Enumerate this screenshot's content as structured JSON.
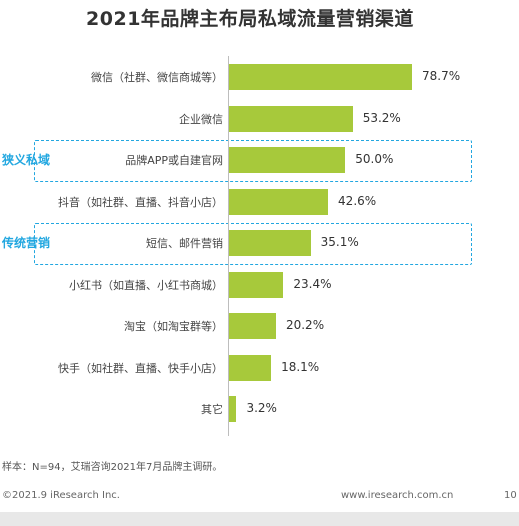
{
  "chart_data": {
    "type": "bar",
    "orientation": "horizontal",
    "title": "2021年品牌主布局私域流量营销渠道",
    "categories": [
      "微信（社群、微信商城等）",
      "企业微信",
      "品牌APP或自建官网",
      "抖音（如社群、直播、抖音小店）",
      "短信、邮件营销",
      "小红书（如直播、小红书商城）",
      "淘宝（如淘宝群等）",
      "快手（如社群、直播、快手小店）",
      "其它"
    ],
    "values": [
      78.7,
      53.2,
      50.0,
      42.6,
      35.1,
      23.4,
      20.2,
      18.1,
      3.2
    ],
    "value_labels": [
      "78.7%",
      "53.2%",
      "50.0%",
      "42.6%",
      "35.1%",
      "23.4%",
      "20.2%",
      "18.1%",
      "3.2%"
    ],
    "xlim": [
      0,
      100
    ],
    "bar_color": "#a7c93b",
    "highlight_groups": [
      {
        "label": "狭义私域",
        "category_index": 2,
        "color": "#22a7e0"
      },
      {
        "label": "传统营销",
        "category_index": 4,
        "color": "#22a7e0"
      }
    ],
    "grid": false,
    "legend": "none"
  },
  "note": "样本：N=94，艾瑞咨询2021年7月品牌主调研。",
  "footer": {
    "copyright": "©2021.9 iResearch Inc.",
    "website": "www.iresearch.com.cn",
    "page": "10"
  }
}
